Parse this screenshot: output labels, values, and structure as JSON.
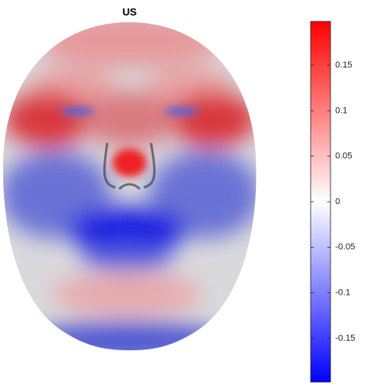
{
  "chart_data": {
    "type": "colorbar",
    "title": "US",
    "clim": [
      -0.198,
      0.198
    ],
    "cticks": [
      -0.15,
      -0.1,
      -0.05,
      0,
      0.05,
      0.1,
      0.15
    ],
    "colormap": [
      "#0000ff",
      "#ffffff",
      "#ff0000"
    ]
  }
}
